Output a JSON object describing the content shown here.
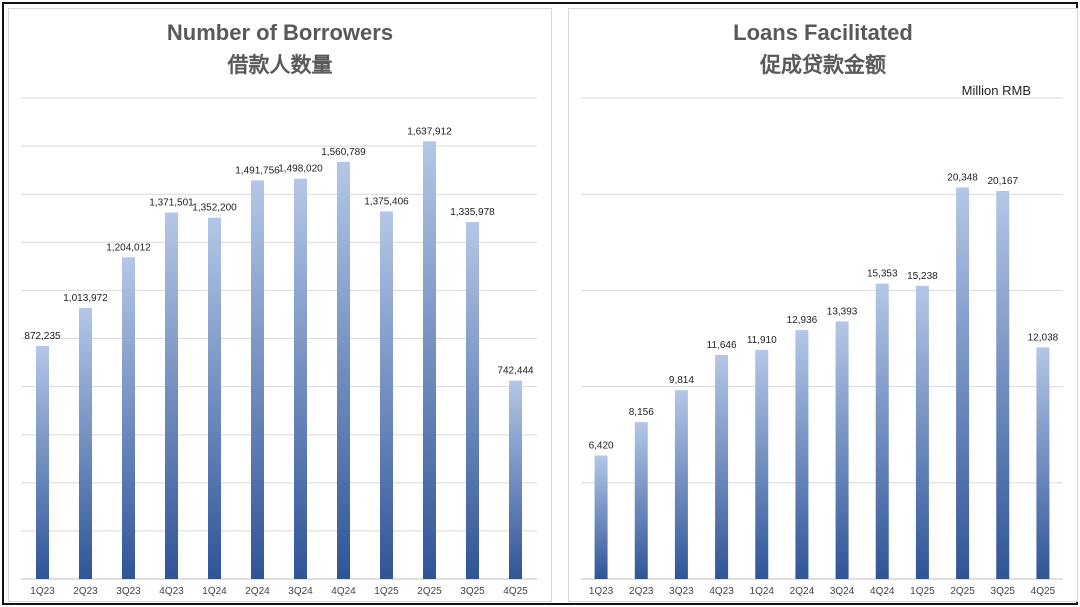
{
  "chart_data": [
    {
      "type": "bar",
      "title": "Number of Borrowers",
      "subtitle": "借款人数量",
      "unit": "",
      "categories": [
        "1Q23",
        "2Q23",
        "3Q23",
        "4Q23",
        "1Q24",
        "2Q24",
        "3Q24",
        "4Q24",
        "1Q25",
        "2Q25",
        "3Q25",
        "4Q25"
      ],
      "values": [
        872235,
        1013972,
        1204012,
        1371501,
        1352200,
        1491756,
        1498020,
        1560789,
        1375406,
        1637912,
        1335978,
        742444
      ],
      "value_labels": [
        "872,235",
        "1,013,972",
        "1,204,012",
        "1,371,501",
        "1,352,200",
        "1,491,756",
        "1,498,020",
        "1,560,789",
        "1,375,406",
        "1,637,912",
        "1,335,978",
        "742,444"
      ],
      "ylim": [
        0,
        1800000
      ],
      "grid": true,
      "legend": "none",
      "colors": {
        "bar_top": "#b4c7e7",
        "bar_bottom": "#2f5597"
      }
    },
    {
      "type": "bar",
      "title": "Loans Facilitated",
      "subtitle": "促成贷款金额",
      "unit": "Million RMB",
      "categories": [
        "1Q23",
        "2Q23",
        "3Q23",
        "4Q23",
        "1Q24",
        "2Q24",
        "3Q24",
        "4Q24",
        "1Q25",
        "2Q25",
        "3Q25",
        "4Q25"
      ],
      "values": [
        6420,
        8156,
        9814,
        11646,
        11910,
        12936,
        13393,
        15353,
        15238,
        20348,
        20167,
        12038
      ],
      "value_labels": [
        "6,420",
        "8,156",
        "9,814",
        "11,646",
        "11,910",
        "12,936",
        "13,393",
        "15,353",
        "15,238",
        "20,348",
        "20,167",
        "12,038"
      ],
      "ylim": [
        0,
        25000
      ],
      "grid": true,
      "legend": "none",
      "colors": {
        "bar_top": "#b4c7e7",
        "bar_bottom": "#2f5597"
      }
    }
  ]
}
